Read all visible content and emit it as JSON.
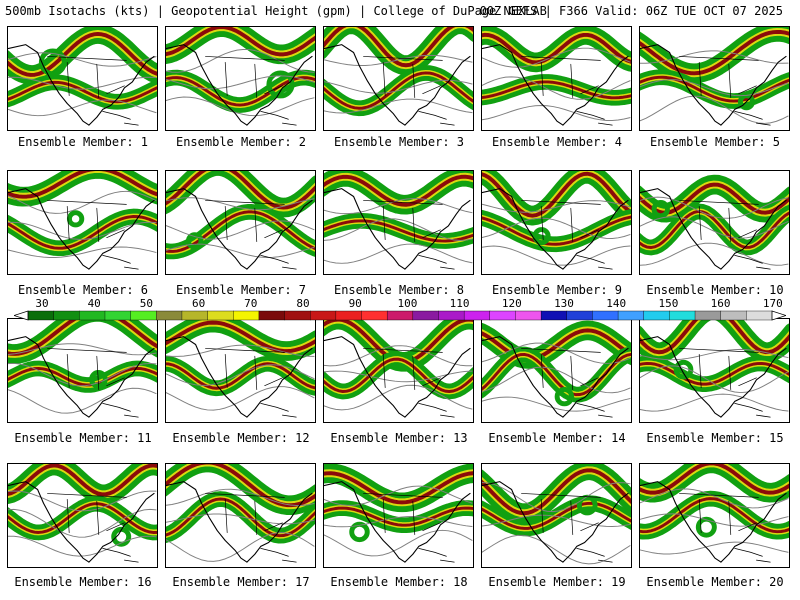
{
  "header": {
    "left_text": "500mb Isotachs (kts) | Geopotential Height (gpm) | College of DuPage NEXLAB",
    "right_text": "00Z GEFS | F366 Valid: 06Z TUE OCT 07 2025"
  },
  "colorbar": {
    "ticks": [
      "30",
      "40",
      "50",
      "60",
      "70",
      "80",
      "90",
      "100",
      "110",
      "120",
      "130",
      "140",
      "150",
      "160",
      "170"
    ],
    "colors": [
      "#0a6e0a",
      "#118f11",
      "#22b822",
      "#33d433",
      "#55ee22",
      "#8a8a3a",
      "#b6b62a",
      "#dcdc1e",
      "#f4f400",
      "#7a0a0a",
      "#a01010",
      "#c81818",
      "#ea2020",
      "#ff3030",
      "#cc1a6a",
      "#8a1aa0",
      "#aa1ac8",
      "#cc22ee",
      "#dd44ff",
      "#ee55ee",
      "#1010b4",
      "#2040d8",
      "#3070ff",
      "#40a0ff",
      "#22ccee",
      "#22dddd",
      "#9a9a9a",
      "#bdbdbd",
      "#dcdcdc"
    ]
  },
  "map_colors": {
    "land": "#000000",
    "height": "#808080",
    "jet_green": "#11a011",
    "jet_yellow": "#dada10",
    "jet_core": "#8b0a0a"
  },
  "panels": [
    {
      "label": "Ensemble Member: 1"
    },
    {
      "label": "Ensemble Member: 2"
    },
    {
      "label": "Ensemble Member: 3"
    },
    {
      "label": "Ensemble Member: 4"
    },
    {
      "label": "Ensemble Member: 5"
    },
    {
      "label": "Ensemble Member: 6"
    },
    {
      "label": "Ensemble Member: 7"
    },
    {
      "label": "Ensemble Member: 8"
    },
    {
      "label": "Ensemble Member: 9"
    },
    {
      "label": "Ensemble Member: 10"
    },
    {
      "label": "Ensemble Member: 11"
    },
    {
      "label": "Ensemble Member: 12"
    },
    {
      "label": "Ensemble Member: 13"
    },
    {
      "label": "Ensemble Member: 14"
    },
    {
      "label": "Ensemble Member: 15"
    },
    {
      "label": "Ensemble Member: 16"
    },
    {
      "label": "Ensemble Member: 17"
    },
    {
      "label": "Ensemble Member: 18"
    },
    {
      "label": "Ensemble Member: 19"
    },
    {
      "label": "Ensemble Member: 20"
    }
  ]
}
